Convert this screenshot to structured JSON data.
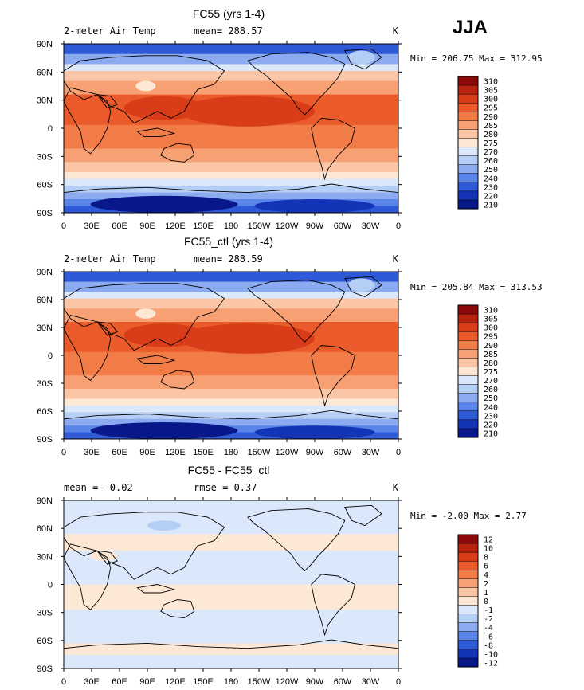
{
  "season": "JJA",
  "lon_ticks": [
    "0",
    "30E",
    "60E",
    "90E",
    "120E",
    "150E",
    "180",
    "150W",
    "120W",
    "90W",
    "60W",
    "30W",
    "0"
  ],
  "lat_ticks": [
    "90N",
    "60N",
    "30N",
    "0",
    "30S",
    "60S",
    "90S"
  ],
  "panels": [
    {
      "title": "FC55 (yrs 1-4)",
      "left_label": "2-meter Air Temp",
      "center_label": "mean= 288.57",
      "units": "K",
      "stats": "Min = 206.75 Max = 312.95",
      "type": "abs",
      "levels": [
        "310",
        "305",
        "300",
        "295",
        "290",
        "285",
        "280",
        "275",
        "270",
        "260",
        "250",
        "240",
        "230",
        "220",
        "210"
      ],
      "colors": [
        "#8c0a0a",
        "#b82410",
        "#d93c18",
        "#ea5a2a",
        "#f27c48",
        "#f7a074",
        "#fbc6a6",
        "#fde8d6",
        "#dbe8fb",
        "#b5cef5",
        "#8caaf0",
        "#5a84e8",
        "#2e5ad8",
        "#1434b8",
        "#08188a"
      ]
    },
    {
      "title": "FC55_ctl (yrs 1-4)",
      "left_label": "2-meter Air Temp",
      "center_label": "mean= 288.59",
      "units": "K",
      "stats": "Min = 205.84 Max = 313.53",
      "type": "abs",
      "levels": [
        "310",
        "305",
        "300",
        "295",
        "290",
        "285",
        "280",
        "275",
        "270",
        "260",
        "250",
        "240",
        "230",
        "220",
        "210"
      ],
      "colors": [
        "#8c0a0a",
        "#b82410",
        "#d93c18",
        "#ea5a2a",
        "#f27c48",
        "#f7a074",
        "#fbc6a6",
        "#fde8d6",
        "#dbe8fb",
        "#b5cef5",
        "#8caaf0",
        "#5a84e8",
        "#2e5ad8",
        "#1434b8",
        "#08188a"
      ]
    },
    {
      "title": "FC55 - FC55_ctl",
      "left_label": "mean =   -0.02",
      "center_label": "rmse =    0.37",
      "units": "K",
      "stats": "Min =  -2.00 Max =   2.77",
      "type": "diff",
      "levels": [
        "12",
        "10",
        "8",
        "6",
        "4",
        "2",
        "1",
        "0",
        "-1",
        "-2",
        "-4",
        "-6",
        "-8",
        "-10",
        "-12"
      ],
      "colors": [
        "#8c0a0a",
        "#b82410",
        "#d93c18",
        "#ea5a2a",
        "#f27c48",
        "#f7a074",
        "#fbc6a6",
        "#fde8d6",
        "#dbe8fb",
        "#b5cef5",
        "#8caaf0",
        "#5a84e8",
        "#2e5ad8",
        "#1434b8",
        "#08188a"
      ]
    }
  ]
}
